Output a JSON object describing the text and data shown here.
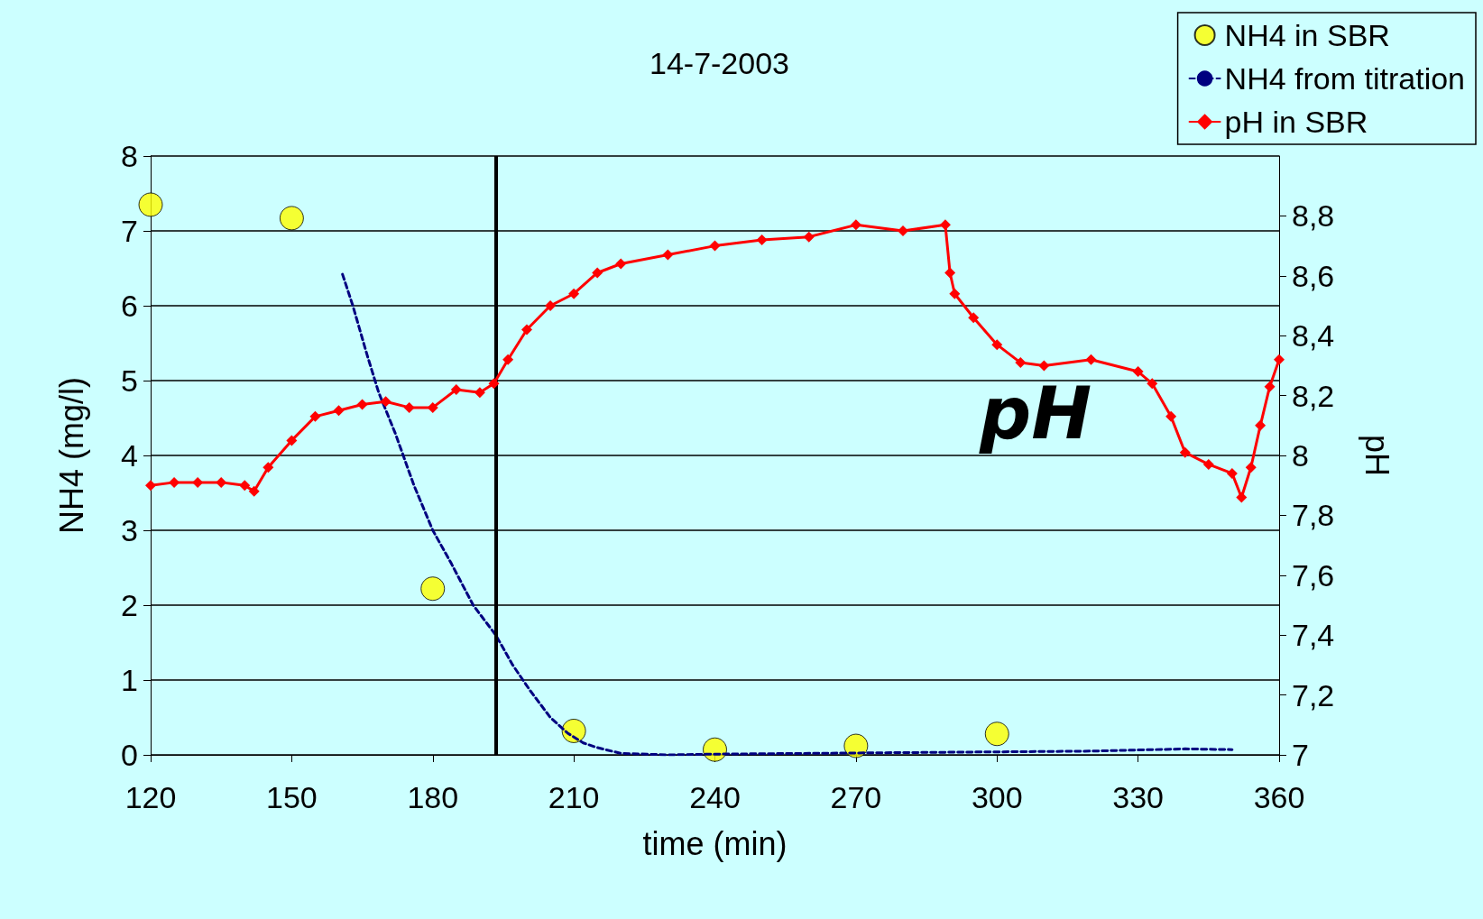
{
  "chart_data": {
    "type": "scatter",
    "title": "14-7-2003",
    "xlabel": "time (min)",
    "ylabel": "NH4 (mg/l)",
    "y2label": "pH",
    "xlim": [
      120,
      360
    ],
    "xticks": [
      120,
      150,
      180,
      210,
      240,
      270,
      300,
      330,
      360
    ],
    "ylim": [
      0,
      8
    ],
    "yticks": [
      0,
      1,
      2,
      3,
      4,
      5,
      6,
      7,
      8
    ],
    "y2lim": [
      7,
      9
    ],
    "y2ticks": [
      {
        "value": 7,
        "label": "7"
      },
      {
        "value": 7.2,
        "label": "7,2"
      },
      {
        "value": 7.4,
        "label": "7,4"
      },
      {
        "value": 7.6,
        "label": "7,6"
      },
      {
        "value": 7.8,
        "label": "7,8"
      },
      {
        "value": 8,
        "label": "8"
      },
      {
        "value": 8.2,
        "label": "8,2"
      },
      {
        "value": 8.4,
        "label": "8,4"
      },
      {
        "value": 8.6,
        "label": "8,6"
      },
      {
        "value": 8.8,
        "label": "8,8"
      }
    ],
    "grid": "y",
    "legend": "top right",
    "ref_lines": [
      {
        "axis": "x",
        "value": 193.4,
        "label": null,
        "color": "#000000"
      }
    ],
    "annotations": [
      "pH"
    ],
    "series": [
      {
        "name": "NH4 in SBR",
        "type": "scatter",
        "marker": "circle",
        "color": "#ffff00",
        "x": [
          120,
          150,
          180,
          210,
          240,
          270,
          300
        ],
        "values": [
          7.35,
          7.17,
          2.22,
          0.32,
          0.07,
          0.12,
          0.28
        ]
      },
      {
        "name": "NH4 from titration",
        "type": "line",
        "marker": "none",
        "line_style": "dashed",
        "color": "#000080",
        "x": [
          160.8,
          163,
          166,
          168.5,
          172,
          176,
          180,
          184,
          188.6,
          193.4,
          197,
          200.7,
          205,
          208.7,
          212,
          214.8,
          220,
          230,
          240,
          260,
          280,
          300,
          320,
          340,
          350
        ],
        "values": [
          6.42,
          6.0,
          5.35,
          4.84,
          4.3,
          3.6,
          3.0,
          2.55,
          2.0,
          1.6,
          1.2,
          0.86,
          0.5,
          0.29,
          0.16,
          0.1,
          0.02,
          0.0,
          0.01,
          0.02,
          0.03,
          0.04,
          0.05,
          0.08,
          0.07
        ]
      },
      {
        "name": "pH in SBR",
        "type": "line",
        "marker": "diamond",
        "line_style": "solid",
        "axis": "y2",
        "color": "#ff0000",
        "x": [
          120,
          125,
          130,
          135,
          140,
          142,
          145,
          150,
          155,
          160,
          165,
          170,
          175,
          180,
          185,
          190,
          193,
          196,
          200,
          205,
          210,
          215,
          220,
          230,
          240,
          250,
          260,
          270,
          280,
          289,
          290,
          291,
          295,
          300,
          305,
          310,
          320,
          330,
          333,
          337,
          340,
          345,
          350,
          352,
          354,
          356,
          358,
          360
        ],
        "values": [
          7.9,
          7.91,
          7.91,
          7.91,
          7.9,
          7.88,
          7.96,
          8.05,
          8.13,
          8.15,
          8.17,
          8.18,
          8.16,
          8.16,
          8.22,
          8.21,
          8.24,
          8.32,
          8.42,
          8.5,
          8.54,
          8.61,
          8.64,
          8.67,
          8.7,
          8.72,
          8.73,
          8.77,
          8.75,
          8.77,
          8.61,
          8.54,
          8.46,
          8.37,
          8.31,
          8.3,
          8.32,
          8.28,
          8.24,
          8.13,
          8.01,
          7.97,
          7.94,
          7.86,
          7.96,
          8.1,
          8.23,
          8.32
        ]
      }
    ]
  }
}
